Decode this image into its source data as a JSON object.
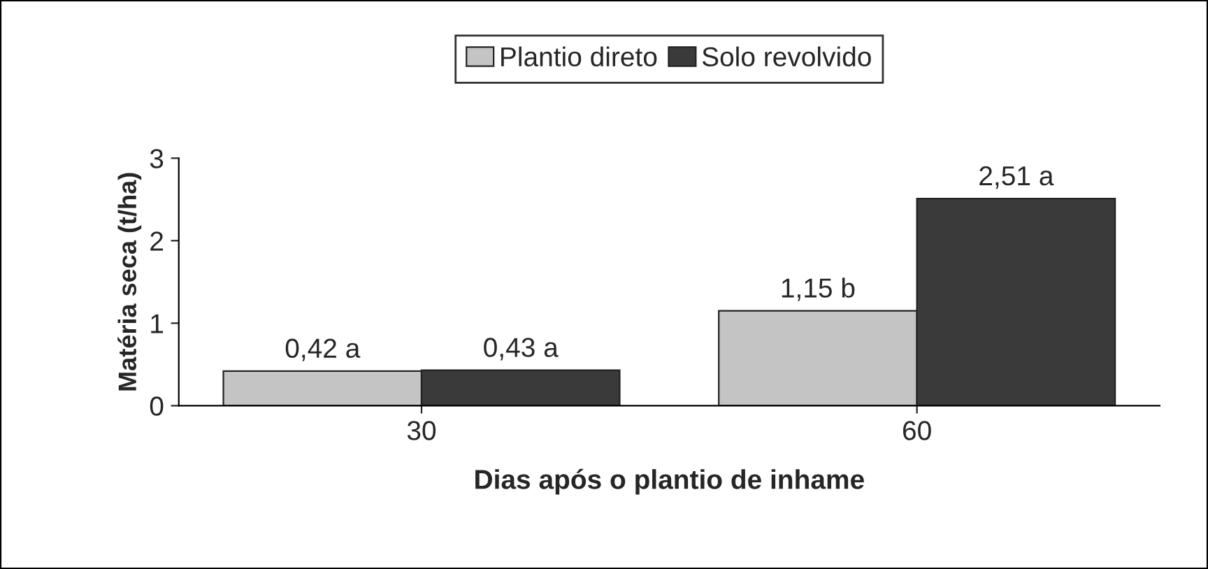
{
  "chart_data": {
    "type": "bar",
    "xlabel": "Dias após o plantio de inhame",
    "ylabel": "Matéria seca (t/ha)",
    "categories": [
      "30",
      "60"
    ],
    "series": [
      {
        "name": "Plantio direto",
        "color": "#c4c4c4",
        "values": [
          0.42,
          1.15
        ],
        "value_labels": [
          "0,42 a",
          "1,15 b"
        ]
      },
      {
        "name": "Solo revolvido",
        "color": "#3a3a3a",
        "values": [
          0.43,
          2.51
        ],
        "value_labels": [
          "0,43 a",
          "2,51 a"
        ]
      }
    ],
    "ylim": [
      0,
      3
    ],
    "yticks": [
      0,
      1,
      2,
      3
    ],
    "grid": false,
    "legend": "top"
  }
}
